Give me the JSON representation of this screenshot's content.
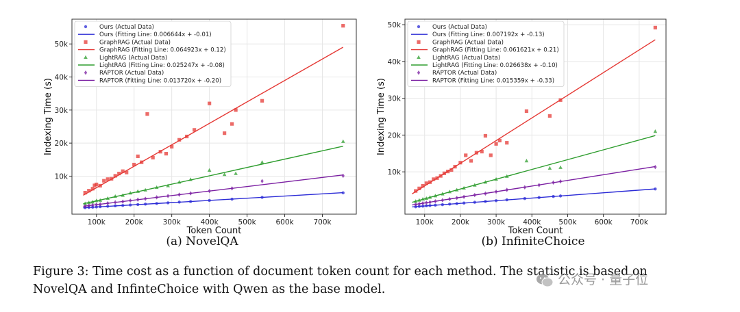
{
  "chart_data": [
    {
      "type": "scatter",
      "id": "novelqa",
      "subcaption": "(a) NovelQA",
      "xlabel": "Token Count",
      "ylabel": "Indexing Time (s)",
      "xlim": [
        35000,
        790000
      ],
      "ylim": [
        -1500,
        57500
      ],
      "x_ticks": [
        100000,
        200000,
        300000,
        400000,
        500000,
        600000,
        700000
      ],
      "x_tick_labels": [
        "100k",
        "200k",
        "300k",
        "400k",
        "500k",
        "600k",
        "700k"
      ],
      "y_ticks": [
        10000,
        20000,
        30000,
        40000,
        50000
      ],
      "y_tick_labels": [
        "10k",
        "20k",
        "30k",
        "40k",
        "50k"
      ],
      "grid": true,
      "legend_position": "top-left",
      "series": [
        {
          "name": "Ours",
          "color": "#2b2bd6",
          "marker": "circle",
          "scatter_label": "Ours (Actual Data)",
          "fit_label": "Ours (Fitting Line: 0.006644x + -0.01)",
          "fit": {
            "slope": 0.006644,
            "intercept": -0.01
          },
          "x": [
            70000,
            80000,
            90000,
            100000,
            110000,
            130000,
            150000,
            170000,
            190000,
            210000,
            230000,
            260000,
            290000,
            320000,
            350000,
            400000,
            460000,
            540000,
            755000
          ],
          "y": [
            450,
            520,
            600,
            690,
            760,
            880,
            1020,
            1120,
            1280,
            1420,
            1540,
            1730,
            1930,
            2150,
            2320,
            2660,
            3050,
            3580,
            4950
          ]
        },
        {
          "name": "GraphRAG",
          "color": "#e53935",
          "marker": "square",
          "scatter_label": "GraphRAG (Actual Data)",
          "fit_label": "GraphRAG (Fitting Line: 0.064923x + 0.12)",
          "fit": {
            "slope": 0.064923,
            "intercept": 0.12
          },
          "x": [
            70000,
            80000,
            90000,
            95000,
            100000,
            110000,
            120000,
            130000,
            140000,
            150000,
            160000,
            170000,
            180000,
            200000,
            210000,
            220000,
            235000,
            250000,
            270000,
            285000,
            300000,
            320000,
            340000,
            360000,
            400000,
            440000,
            460000,
            470000,
            540000,
            755000
          ],
          "y": [
            5000,
            5600,
            6200,
            7200,
            7500,
            7100,
            8600,
            9100,
            9200,
            10100,
            10800,
            11500,
            11100,
            13500,
            16000,
            14200,
            28800,
            15600,
            17400,
            16800,
            18900,
            21000,
            22000,
            24000,
            32000,
            23000,
            25800,
            30000,
            32800,
            55500
          ]
        },
        {
          "name": "LightRAG",
          "color": "#2e9d2e",
          "marker": "triangle",
          "scatter_label": "LightRAG (Actual Data)",
          "fit_label": "LightRAG (Fitting Line: 0.025247x + -0.08)",
          "fit": {
            "slope": 0.025247,
            "intercept": -0.08
          },
          "x": [
            70000,
            80000,
            90000,
            100000,
            110000,
            130000,
            150000,
            170000,
            190000,
            210000,
            230000,
            260000,
            290000,
            320000,
            350000,
            400000,
            440000,
            470000,
            540000,
            755000
          ],
          "y": [
            1700,
            2000,
            2200,
            2600,
            2700,
            3300,
            3900,
            4200,
            4900,
            5400,
            5800,
            6600,
            7100,
            8200,
            9000,
            11800,
            10500,
            10800,
            14200,
            20500
          ]
        },
        {
          "name": "RAPTOR",
          "color": "#7b1fa2",
          "marker": "diamond",
          "scatter_label": "RAPTOR (Actual Data)",
          "fit_label": "RAPTOR (Fitting Line: 0.013720x + -0.20)",
          "fit": {
            "slope": 0.01372,
            "intercept": -0.2
          },
          "x": [
            70000,
            80000,
            90000,
            100000,
            110000,
            130000,
            150000,
            170000,
            190000,
            210000,
            230000,
            260000,
            290000,
            320000,
            350000,
            400000,
            460000,
            540000,
            755000
          ],
          "y": [
            900,
            1100,
            1250,
            1400,
            1500,
            1800,
            2100,
            2300,
            2600,
            2900,
            3150,
            3600,
            4000,
            4400,
            4800,
            5500,
            6300,
            8500,
            10100
          ]
        }
      ]
    },
    {
      "type": "scatter",
      "id": "infinitechoice",
      "subcaption": "(b) InfiniteChoice",
      "xlabel": "Token Count",
      "ylabel": "Indexing Time (s)",
      "xlim": [
        45000,
        775000
      ],
      "ylim": [
        -1500,
        51500
      ],
      "x_ticks": [
        100000,
        200000,
        300000,
        400000,
        500000,
        600000,
        700000
      ],
      "x_tick_labels": [
        "100k",
        "200k",
        "300k",
        "400k",
        "500k",
        "600k",
        "700k"
      ],
      "y_ticks": [
        10000,
        20000,
        30000,
        40000,
        50000
      ],
      "y_tick_labels": [
        "10k",
        "20k",
        "30k",
        "40k",
        "50k"
      ],
      "grid": true,
      "legend_position": "top-left",
      "series": [
        {
          "name": "Ours",
          "color": "#2b2bd6",
          "marker": "circle",
          "scatter_label": "Ours (Actual Data)",
          "fit_label": "Ours (Fitting Line: 0.007192x + -0.13)",
          "fit": {
            "slope": 0.007192,
            "intercept": -0.13
          },
          "x": [
            75000,
            85000,
            95000,
            105000,
            115000,
            130000,
            150000,
            170000,
            190000,
            210000,
            240000,
            270000,
            300000,
            330000,
            380000,
            420000,
            460000,
            480000,
            745000
          ],
          "y": [
            500,
            620,
            680,
            770,
            830,
            950,
            1080,
            1230,
            1380,
            1520,
            1730,
            1950,
            2170,
            2390,
            2740,
            3020,
            3310,
            3450,
            5350
          ]
        },
        {
          "name": "GraphRAG",
          "color": "#e53935",
          "marker": "square",
          "scatter_label": "GraphRAG (Actual Data)",
          "fit_label": "GraphRAG (Fitting Line: 0.061621x + 0.21)",
          "fit": {
            "slope": 0.061621,
            "intercept": 0.21
          },
          "x": [
            75000,
            85000,
            95000,
            105000,
            115000,
            125000,
            135000,
            145000,
            155000,
            165000,
            175000,
            185000,
            200000,
            215000,
            230000,
            245000,
            260000,
            270000,
            285000,
            300000,
            310000,
            330000,
            385000,
            450000,
            480000,
            745000
          ],
          "y": [
            4800,
            5500,
            6200,
            6900,
            7200,
            8000,
            8300,
            8900,
            9600,
            10100,
            10500,
            11400,
            12500,
            14500,
            13000,
            15200,
            15500,
            19800,
            14500,
            17600,
            18500,
            17900,
            26500,
            25200,
            29500,
            49200
          ]
        },
        {
          "name": "LightRAG",
          "color": "#2e9d2e",
          "marker": "triangle",
          "scatter_label": "LightRAG (Actual Data)",
          "fit_label": "LightRAG (Fitting Line: 0.026638x + -0.10)",
          "fit": {
            "slope": 0.026638,
            "intercept": -0.1
          },
          "x": [
            75000,
            85000,
            95000,
            105000,
            115000,
            130000,
            150000,
            170000,
            190000,
            210000,
            240000,
            270000,
            300000,
            330000,
            385000,
            450000,
            480000,
            745000
          ],
          "y": [
            2000,
            2300,
            2600,
            2800,
            3100,
            3500,
            4000,
            4600,
            5100,
            5600,
            6400,
            7200,
            8000,
            8800,
            13000,
            11000,
            11200,
            21000
          ]
        },
        {
          "name": "RAPTOR",
          "color": "#7b1fa2",
          "marker": "diamond",
          "scatter_label": "RAPTOR (Actual Data)",
          "fit_label": "RAPTOR (Fitting Line: 0.015359x + -0.33)",
          "fit": {
            "slope": 0.015359,
            "intercept": -0.33
          },
          "x": [
            75000,
            85000,
            95000,
            105000,
            115000,
            130000,
            150000,
            170000,
            190000,
            210000,
            240000,
            270000,
            300000,
            330000,
            380000,
            420000,
            460000,
            480000,
            745000
          ],
          "y": [
            1150,
            1300,
            1450,
            1600,
            1750,
            2000,
            2300,
            2600,
            2900,
            3200,
            3700,
            4100,
            4600,
            5100,
            5800,
            6400,
            7100,
            7400,
            11300
          ]
        }
      ]
    }
  ],
  "figure_caption": {
    "line1": "Figure 3: Time cost as a function of document token count for each method. The statistic is based on",
    "line2": "NovelQA and InfinteChoice with Qwen as the base model."
  },
  "watermark": {
    "text": "公众号 · 量子位"
  }
}
